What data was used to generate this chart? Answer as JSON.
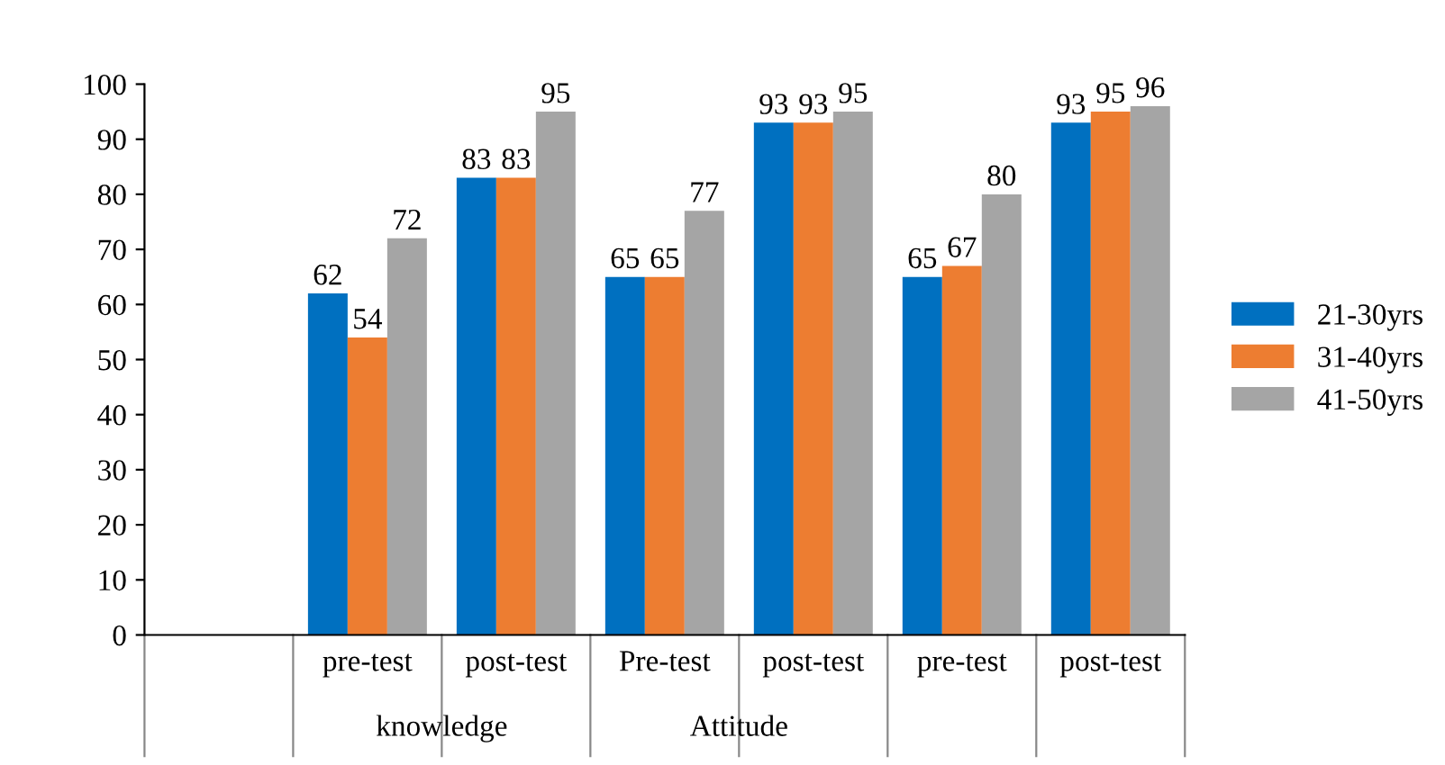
{
  "chart_data": {
    "type": "bar",
    "categories": [
      null,
      "pre-test",
      "post-test",
      "Pre-test",
      "post-test",
      "pre-test",
      "post-test"
    ],
    "series": [
      {
        "name": "21-30yrs",
        "color": "#0070c0",
        "values": [
          null,
          62,
          83,
          65,
          93,
          65,
          93
        ]
      },
      {
        "name": "31-40yrs",
        "color": "#ed7d31",
        "values": [
          null,
          54,
          83,
          65,
          93,
          67,
          95
        ]
      },
      {
        "name": "41-50yrs",
        "color": "#a5a5a5",
        "values": [
          null,
          72,
          95,
          77,
          95,
          80,
          96
        ]
      }
    ],
    "annotations": [
      "knowledge",
      "Attitude"
    ],
    "ylim": [
      0,
      100
    ],
    "yticks": [
      0,
      10,
      20,
      30,
      40,
      50,
      60,
      70,
      80,
      90,
      100
    ],
    "data_labels": true,
    "legend": "right",
    "grid": false
  }
}
